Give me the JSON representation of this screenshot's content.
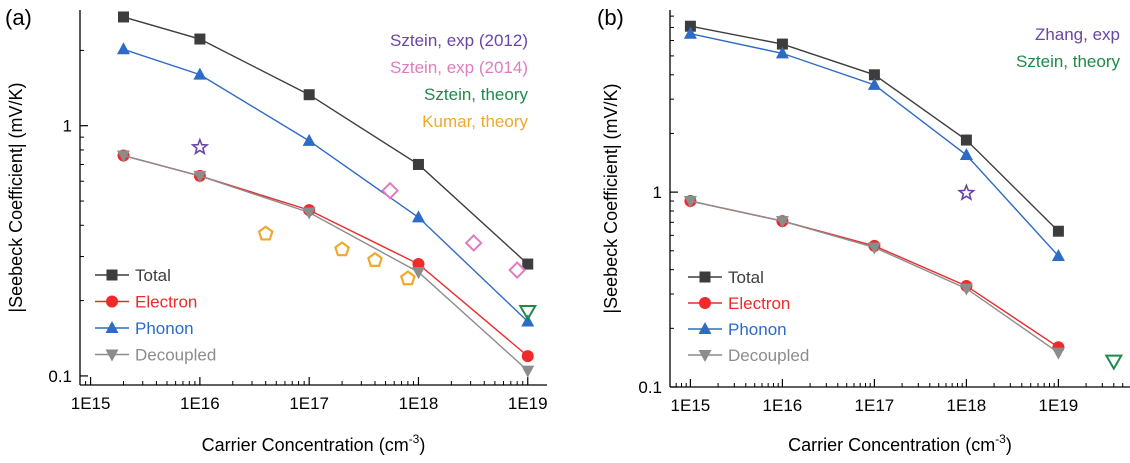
{
  "chart_data": [
    {
      "type": "line",
      "panel_label": "(a)",
      "xlabel": "Carrier Concentration (cm",
      "xlabel_sup": "-3",
      "xlabel_end": ")",
      "ylabel": "|Seebeck Coefficient| (mV/K)",
      "x_scale": "log",
      "y_scale": "log",
      "xlim": [
        800000000000000.0,
        1.5e+19
      ],
      "ylim": [
        0.092,
        2.9
      ],
      "x_ticks": [
        {
          "value": 1000000000000000.0,
          "label": "1E15"
        },
        {
          "value": 1e+16,
          "label": "1E16"
        },
        {
          "value": 1e+17,
          "label": "1E17"
        },
        {
          "value": 1e+18,
          "label": "1E18"
        },
        {
          "value": 1e+19,
          "label": "1E19"
        }
      ],
      "y_ticks": [
        {
          "value": 0.1,
          "label": "0.1"
        },
        {
          "value": 1,
          "label": "1"
        }
      ],
      "legend_position": "bottom-left",
      "series": [
        {
          "name": "Total",
          "color": "#3d3d3d",
          "marker": "square",
          "x": [
            2000000000000000.0,
            1e+16,
            1e+17,
            1e+18,
            1e+19
          ],
          "y": [
            2.72,
            2.22,
            1.33,
            0.7,
            0.28
          ]
        },
        {
          "name": "Electron",
          "color": "#ee2a2a",
          "marker": "circle",
          "x": [
            2000000000000000.0,
            1e+16,
            1e+17,
            1e+18,
            1e+19
          ],
          "y": [
            0.76,
            0.63,
            0.46,
            0.28,
            0.12
          ]
        },
        {
          "name": "Phonon",
          "color": "#2e6bc4",
          "marker": "triangle-up",
          "x": [
            2000000000000000.0,
            1e+16,
            1e+17,
            1e+18,
            1e+19
          ],
          "y": [
            2.02,
            1.6,
            0.87,
            0.43,
            0.165
          ]
        },
        {
          "name": "Decoupled",
          "color": "#8c8c8c",
          "marker": "triangle-down",
          "x": [
            2000000000000000.0,
            1e+16,
            1e+17,
            1e+18,
            1e+19
          ],
          "y": [
            0.76,
            0.63,
            0.45,
            0.26,
            0.105
          ]
        }
      ],
      "annotations": [
        {
          "name": "Sztein, exp (2012)",
          "color": "#6a45a8",
          "marker": "star-open",
          "x": [
            1e+16
          ],
          "y": [
            0.82
          ]
        },
        {
          "name": "Sztein, exp (2014)",
          "color": "#e07bbf",
          "marker": "diamond-open",
          "x": [
            5.5e+17,
            3.2e+18,
            8e+18
          ],
          "y": [
            0.55,
            0.34,
            0.265
          ]
        },
        {
          "name": "Sztein, theory",
          "color": "#1f8a4a",
          "marker": "triangle-down-open",
          "x": [
            1e+19
          ],
          "y": [
            0.18
          ]
        },
        {
          "name": "Kumar, theory",
          "color": "#f0a92a",
          "marker": "pentagon-open",
          "x": [
            4e+16,
            2e+17,
            4e+17,
            8e+17
          ],
          "y": [
            0.37,
            0.32,
            0.29,
            0.245
          ]
        }
      ]
    },
    {
      "type": "line",
      "panel_label": "(b)",
      "xlabel": "Carrier Concentration (cm",
      "xlabel_sup": "-3",
      "xlabel_end": ")",
      "ylabel": "|Seebeck Coefficient| (mV/K)",
      "x_scale": "log",
      "y_scale": "log",
      "xlim": [
        600000000000000.0,
        6e+19
      ],
      "ylim": [
        0.1,
        8.6
      ],
      "x_ticks": [
        {
          "value": 1000000000000000.0,
          "label": "1E15"
        },
        {
          "value": 1e+16,
          "label": "1E16"
        },
        {
          "value": 1e+17,
          "label": "1E17"
        },
        {
          "value": 1e+18,
          "label": "1E18"
        },
        {
          "value": 1e+19,
          "label": "1E19"
        }
      ],
      "y_ticks": [
        {
          "value": 0.1,
          "label": "0.1"
        },
        {
          "value": 1,
          "label": "1"
        }
      ],
      "legend_position": "bottom-left",
      "series": [
        {
          "name": "Total",
          "color": "#3d3d3d",
          "marker": "square",
          "x": [
            1000000000000000.0,
            1e+16,
            1e+17,
            1e+18,
            1e+19
          ],
          "y": [
            7.1,
            5.75,
            4.0,
            1.85,
            0.63
          ]
        },
        {
          "name": "Electron",
          "color": "#ee2a2a",
          "marker": "circle",
          "x": [
            1000000000000000.0,
            1e+16,
            1e+17,
            1e+18,
            1e+19
          ],
          "y": [
            0.9,
            0.71,
            0.53,
            0.33,
            0.16
          ]
        },
        {
          "name": "Phonon",
          "color": "#2e6bc4",
          "marker": "triangle-up",
          "x": [
            1000000000000000.0,
            1e+16,
            1e+17,
            1e+18,
            1e+19
          ],
          "y": [
            6.5,
            5.15,
            3.55,
            1.55,
            0.47
          ]
        },
        {
          "name": "Decoupled",
          "color": "#8c8c8c",
          "marker": "triangle-down",
          "x": [
            1000000000000000.0,
            1e+16,
            1e+17,
            1e+18,
            1e+19
          ],
          "y": [
            0.9,
            0.71,
            0.52,
            0.32,
            0.15
          ]
        }
      ],
      "annotations": [
        {
          "name": "Zhang, exp",
          "color": "#6a45a8",
          "marker": "star-open",
          "x": [
            1e+18
          ],
          "y": [
            0.99
          ]
        },
        {
          "name": "Sztein, theory",
          "color": "#1f8a4a",
          "marker": "triangle-down-open",
          "x": [
            4e+19
          ],
          "y": [
            0.135
          ]
        }
      ]
    }
  ]
}
